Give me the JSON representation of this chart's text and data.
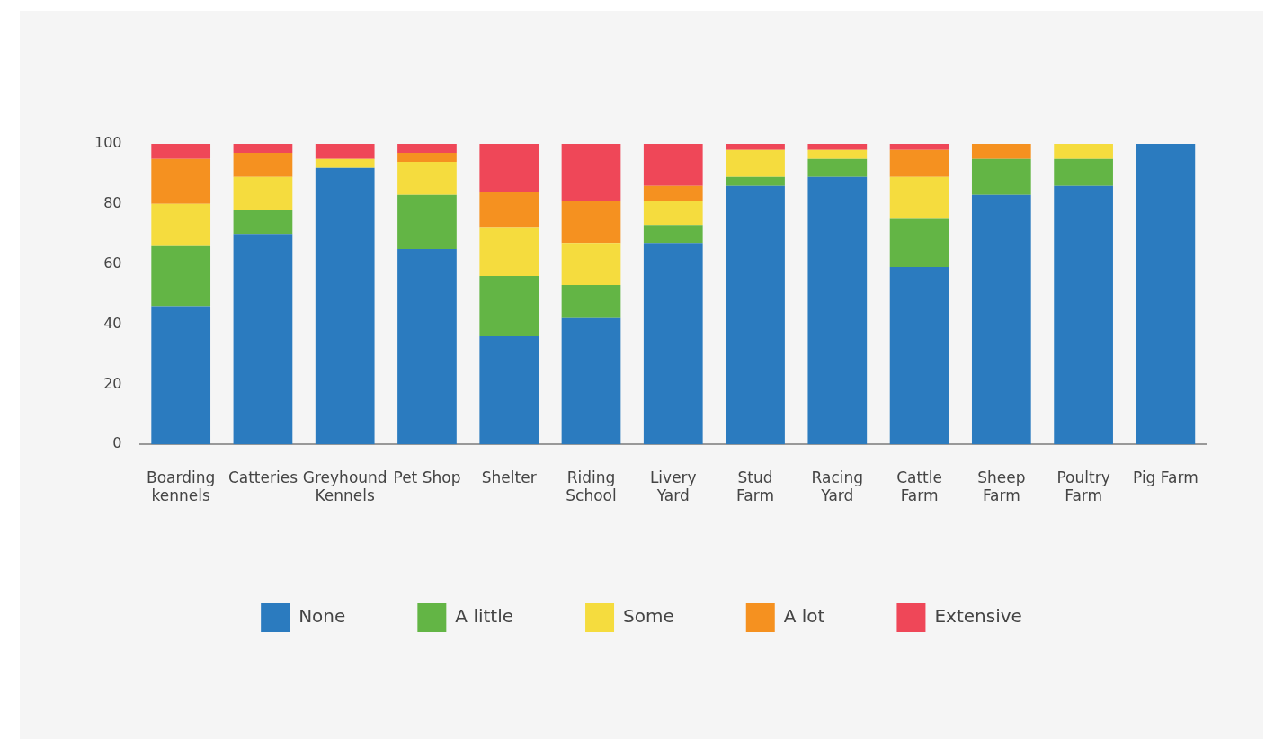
{
  "chart_data": {
    "type": "bar",
    "stacked": true,
    "categories": [
      "Boarding kennels",
      "Catteries",
      "Greyhound Kennels",
      "Pet Shop",
      "Shelter",
      "Riding School",
      "Livery Yard",
      "Stud Farm",
      "Racing Yard",
      "Cattle Farm",
      "Sheep Farm",
      "Poultry Farm",
      "Pig Farm"
    ],
    "series": [
      {
        "name": "None",
        "color": "#2b7bbf",
        "values": [
          46,
          70,
          92,
          65,
          36,
          42,
          67,
          86,
          89,
          59,
          83,
          86,
          100
        ]
      },
      {
        "name": "A little",
        "color": "#63b545",
        "values": [
          20,
          8,
          0,
          18,
          20,
          11,
          6,
          3,
          6,
          16,
          12,
          9,
          0
        ]
      },
      {
        "name": "Some",
        "color": "#f5dc3e",
        "values": [
          14,
          11,
          3,
          11,
          16,
          14,
          8,
          9,
          3,
          14,
          0,
          5,
          0
        ]
      },
      {
        "name": "A lot",
        "color": "#f59120",
        "values": [
          15,
          8,
          0,
          3,
          12,
          14,
          5,
          0,
          0,
          9,
          5,
          0,
          0
        ]
      },
      {
        "name": "Extensive",
        "color": "#ef4758",
        "values": [
          5,
          3,
          5,
          3,
          16,
          19,
          14,
          2,
          2,
          2,
          0,
          0,
          0
        ]
      }
    ],
    "ylim": [
      0,
      100
    ],
    "yticks": [
      0,
      20,
      40,
      60,
      80,
      100
    ],
    "grid": false,
    "legend": "bottom"
  }
}
